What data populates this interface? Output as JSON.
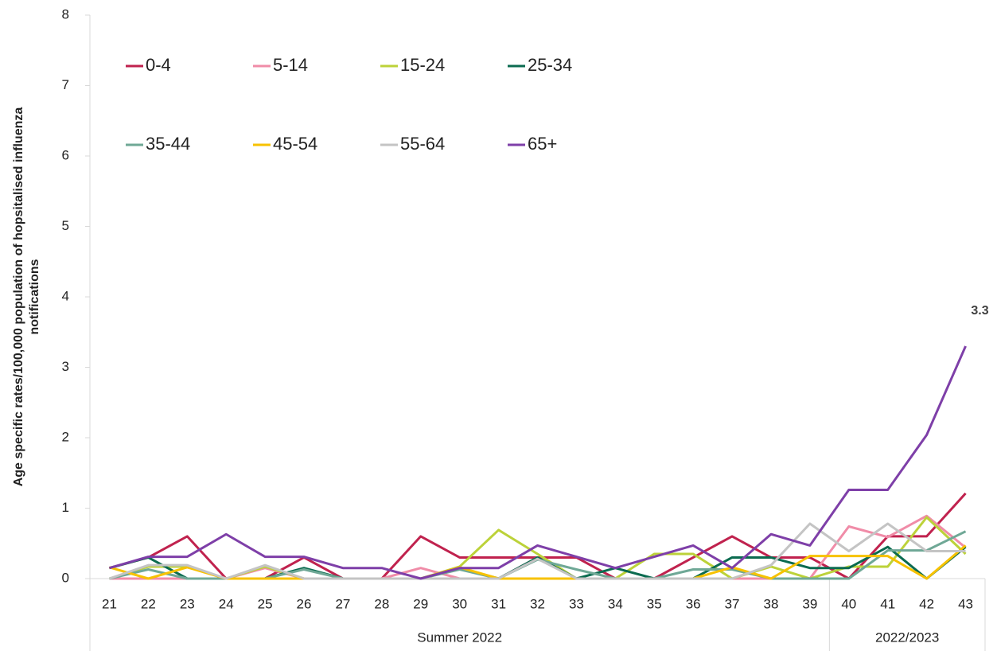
{
  "chart_data": {
    "type": "line",
    "ylabel": [
      "Age specific rates/100,000 population of hopsitalised influenza",
      "notifications"
    ],
    "categories": [
      "21",
      "22",
      "23",
      "24",
      "25",
      "26",
      "27",
      "28",
      "29",
      "30",
      "31",
      "32",
      "33",
      "34",
      "35",
      "36",
      "37",
      "38",
      "39",
      "40",
      "41",
      "42",
      "43"
    ],
    "x_groups": [
      {
        "label": "Summer 2022",
        "count": 19
      },
      {
        "label": "2022/2023",
        "count": 4
      }
    ],
    "series": [
      {
        "name": "0-4",
        "color": "#c0224e",
        "values": [
          0.15,
          0.3,
          0.6,
          0,
          0,
          0.3,
          0,
          0,
          0.6,
          0.3,
          0.3,
          0.3,
          0.3,
          0,
          0,
          0.3,
          0.6,
          0.3,
          0.3,
          0,
          0.6,
          0.6,
          1.21
        ]
      },
      {
        "name": "5-14",
        "color": "#f08ca8",
        "values": [
          0,
          0,
          0,
          0,
          0.15,
          0,
          0,
          0,
          0.15,
          0,
          0,
          0.3,
          0,
          0,
          0,
          0,
          0,
          0,
          0,
          0.74,
          0.59,
          0.89,
          0.44
        ]
      },
      {
        "name": "15-24",
        "color": "#bcd239",
        "values": [
          0,
          0.17,
          0.17,
          0,
          0.17,
          0,
          0,
          0,
          0,
          0.17,
          0.69,
          0.35,
          0,
          0,
          0.35,
          0.35,
          0,
          0.17,
          0,
          0.17,
          0.17,
          0.87,
          0.35
        ]
      },
      {
        "name": "25-34",
        "color": "#0b6b50",
        "values": [
          0.15,
          0.3,
          0,
          0,
          0,
          0.15,
          0,
          0,
          0,
          0.15,
          0,
          0.3,
          0,
          0.15,
          0,
          0,
          0.3,
          0.3,
          0.15,
          0.15,
          0.45,
          0,
          0.45
        ]
      },
      {
        "name": "35-44",
        "color": "#6fa896",
        "values": [
          0,
          0.13,
          0,
          0,
          0,
          0.13,
          0,
          0,
          0,
          0.13,
          0,
          0.27,
          0.13,
          0,
          0,
          0.13,
          0.13,
          0,
          0,
          0,
          0.4,
          0.4,
          0.67
        ]
      },
      {
        "name": "45-54",
        "color": "#f7c200",
        "values": [
          0.16,
          0,
          0.16,
          0,
          0,
          0,
          0,
          0,
          0,
          0.16,
          0,
          0,
          0,
          0,
          0,
          0,
          0.16,
          0,
          0.32,
          0.32,
          0.32,
          0,
          0.47
        ]
      },
      {
        "name": "55-64",
        "color": "#c4c4c4",
        "values": [
          0,
          0.19,
          0.19,
          0,
          0.19,
          0,
          0,
          0,
          0,
          0,
          0,
          0.28,
          0,
          0,
          0,
          0,
          0,
          0.19,
          0.78,
          0.39,
          0.78,
          0.39,
          0.39
        ]
      },
      {
        "name": "65+",
        "color": "#7e3fa8",
        "values": [
          0.15,
          0.31,
          0.31,
          0.63,
          0.31,
          0.31,
          0.15,
          0.15,
          0,
          0.15,
          0.15,
          0.47,
          0.31,
          0.15,
          0.31,
          0.47,
          0.15,
          0.63,
          0.47,
          1.26,
          1.26,
          2.04,
          3.3
        ]
      }
    ],
    "annotations": [
      {
        "text": "3.3",
        "series": "65+",
        "category": "43"
      }
    ],
    "ylim": [
      0,
      8
    ],
    "yticks": [
      0,
      1,
      2,
      3,
      4,
      5,
      6,
      7,
      8
    ],
    "grid": false,
    "legend": "top-left"
  }
}
